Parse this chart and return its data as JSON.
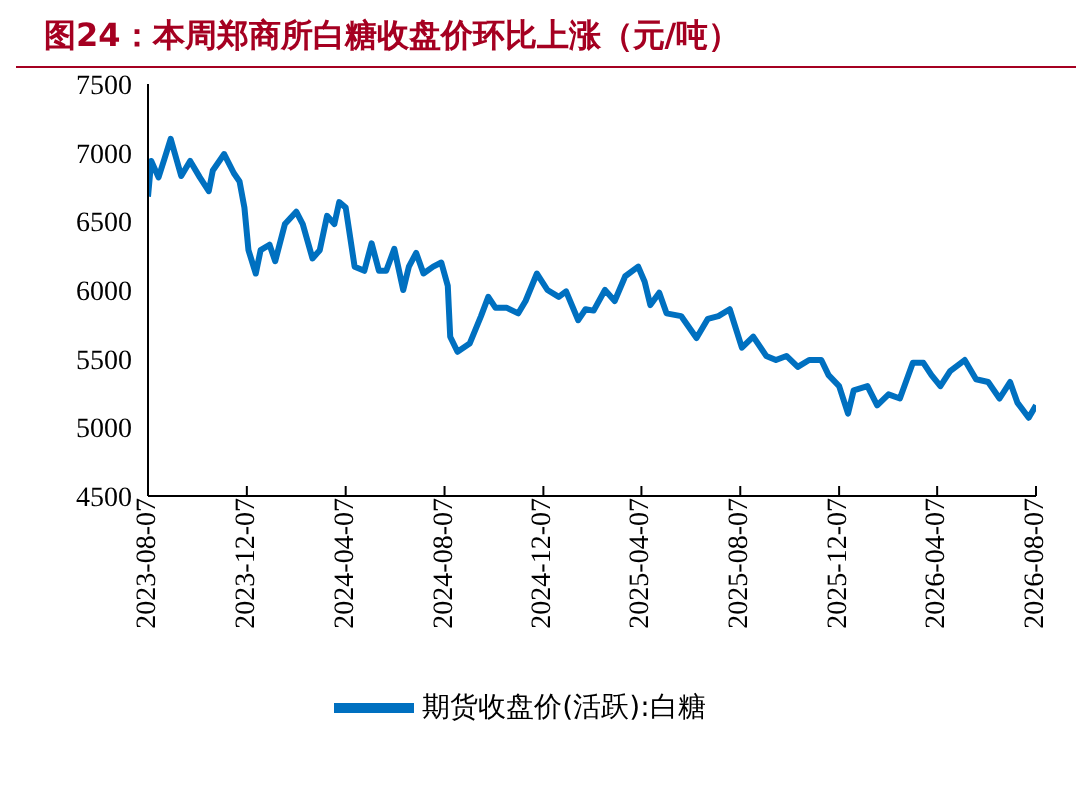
{
  "chart_data": {
    "type": "line",
    "title": "图24：本周郑商所白糖收盘价环比上涨（元/吨）",
    "x": [
      "2023-08-07",
      "2023-08-11",
      "2023-08-20",
      "2023-08-27",
      "2023-09-04",
      "2023-09-17",
      "2023-09-28",
      "2023-10-10",
      "2023-10-21",
      "2023-10-26",
      "2023-11-09",
      "2023-11-21",
      "2023-11-28",
      "2023-12-04",
      "2023-12-09",
      "2023-12-18",
      "2023-12-24",
      "2024-01-04",
      "2024-01-11",
      "2024-01-23",
      "2024-02-06",
      "2024-02-14",
      "2024-02-26",
      "2024-03-06",
      "2024-03-15",
      "2024-03-24",
      "2024-03-30",
      "2024-04-07",
      "2024-04-18",
      "2024-04-30",
      "2024-05-09",
      "2024-05-18",
      "2024-05-27",
      "2024-06-06",
      "2024-06-17",
      "2024-06-24",
      "2024-07-03",
      "2024-07-12",
      "2024-07-24",
      "2024-08-03",
      "2024-08-11",
      "2024-08-14",
      "2024-08-23",
      "2024-09-07",
      "2024-09-21",
      "2024-09-30",
      "2024-10-09",
      "2024-10-23",
      "2024-11-06",
      "2024-11-15",
      "2024-11-29",
      "2024-12-12",
      "2024-12-26",
      "2025-01-04",
      "2025-01-19",
      "2025-01-28",
      "2025-02-07",
      "2025-02-21",
      "2025-03-05",
      "2025-03-18",
      "2025-04-03",
      "2025-04-11",
      "2025-04-18",
      "2025-04-29",
      "2025-05-08",
      "2025-05-26",
      "2025-06-14",
      "2025-06-28",
      "2025-07-11",
      "2025-07-25",
      "2025-08-09",
      "2025-08-23",
      "2025-09-08",
      "2025-09-20",
      "2025-10-03",
      "2025-10-17",
      "2025-10-31",
      "2025-11-15",
      "2025-11-24",
      "2025-12-07",
      "2025-12-18",
      "2025-12-25",
      "2026-01-11",
      "2026-01-23",
      "2026-02-06",
      "2026-02-20",
      "2026-03-08",
      "2026-03-21",
      "2026-03-31",
      "2026-04-11",
      "2026-04-23",
      "2026-05-11",
      "2026-05-25",
      "2026-06-09",
      "2026-06-23",
      "2026-07-06",
      "2026-07-15",
      "2026-07-29",
      "2026-08-07"
    ],
    "series": [
      {
        "name": "期货收盘价(活跃):白糖",
        "color": "#0070c0",
        "values": [
          6680,
          6940,
          6820,
          6950,
          7100,
          6830,
          6940,
          6820,
          6720,
          6870,
          6990,
          6850,
          6790,
          6600,
          6290,
          6120,
          6290,
          6330,
          6210,
          6480,
          6570,
          6480,
          6230,
          6290,
          6540,
          6480,
          6640,
          6600,
          6170,
          6140,
          6340,
          6140,
          6140,
          6300,
          6000,
          6170,
          6270,
          6120,
          6170,
          6200,
          6030,
          5660,
          5550,
          5610,
          5810,
          5950,
          5870,
          5870,
          5830,
          5920,
          6120,
          6000,
          5950,
          5990,
          5780,
          5860,
          5850,
          6000,
          5920,
          6100,
          6170,
          6060,
          5890,
          5980,
          5830,
          5810,
          5650,
          5790,
          5810,
          5860,
          5580,
          5660,
          5520,
          5490,
          5520,
          5440,
          5490,
          5490,
          5380,
          5300,
          5100,
          5270,
          5300,
          5160,
          5240,
          5210,
          5470,
          5470,
          5380,
          5300,
          5410,
          5490,
          5350,
          5330,
          5210,
          5330,
          5180,
          5070,
          5160
        ]
      }
    ],
    "xlim": [
      "2023-08-07",
      "2026-08-07"
    ],
    "xticks": [
      "2023-08-07",
      "2023-12-07",
      "2024-04-07",
      "2024-08-07",
      "2024-12-07",
      "2025-04-07",
      "2025-08-07",
      "2025-12-07",
      "2026-04-07",
      "2026-08-07"
    ],
    "ylim": [
      4500,
      7500
    ],
    "yticks": [
      4500,
      5000,
      5500,
      6000,
      6500,
      7000,
      7500
    ],
    "grid": false,
    "legend": "bottom",
    "marker": "none",
    "line_style": "solid"
  }
}
